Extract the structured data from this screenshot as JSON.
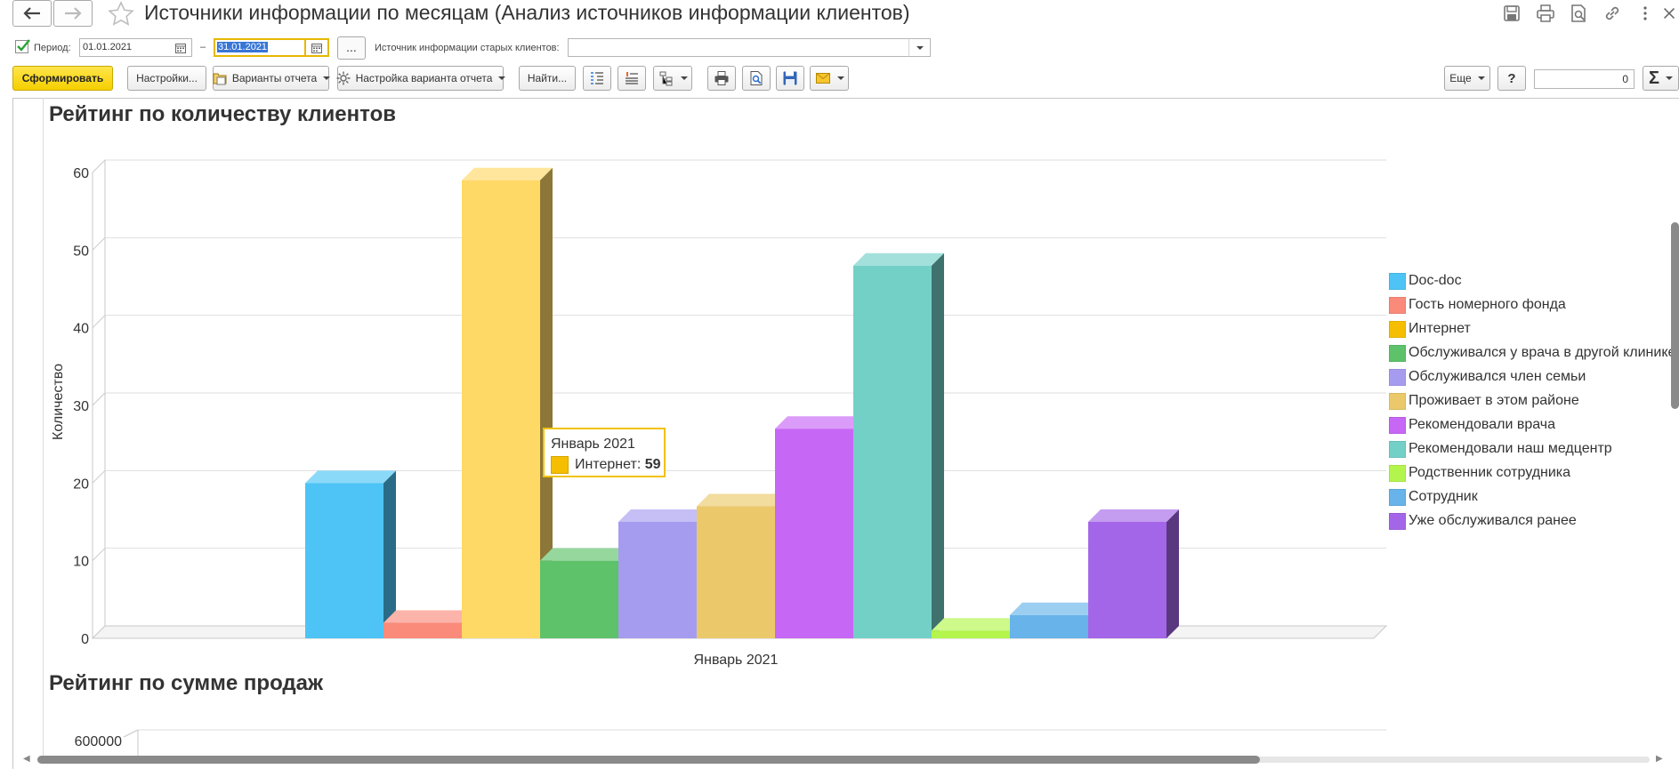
{
  "window": {
    "title": "Источники информации по месяцам (Анализ источников информации клиентов)",
    "back_icon": "arrow-left-icon",
    "forward_icon": "arrow-right-icon",
    "favorite_icon": "star-icon",
    "header_icons": [
      "save-icon",
      "print-icon",
      "preview-icon",
      "link-icon",
      "more-vertical-icon"
    ]
  },
  "filters": {
    "period_checked": true,
    "period_label": "Период:",
    "date_from": "01.01.2021",
    "separator": "–",
    "date_to": "31.01.2021",
    "choose_period_label": "...",
    "old_clients_source_label": "Источник информации старых клиентов:",
    "old_clients_source_value": ""
  },
  "toolbar": {
    "generate_label": "Сформировать",
    "settings_label": "Настройки...",
    "report_variants_label": "Варианты отчета",
    "variant_settings_label": "Настройка варианта отчета",
    "find_label": "Найти...",
    "more_label": "Еще",
    "help_label": "?",
    "sum_value": "0",
    "sum_icon": "sigma-icon"
  },
  "report": {
    "section1_title": "Рейтинг по количеству клиентов",
    "section2_title": "Рейтинг по сумме продаж",
    "section2_first_tick": "600000"
  },
  "tooltip": {
    "title": "Январь 2021",
    "series_label": "Интернет:",
    "value": "59",
    "swatch_color": "#f5be00"
  },
  "chart_data": {
    "type": "bar",
    "title": "Рейтинг по количеству клиентов",
    "categories": [
      "Январь 2021"
    ],
    "xlabel": "",
    "ylabel": "Количество",
    "ylim": [
      0,
      60
    ],
    "yticks": [
      0,
      10,
      20,
      30,
      40,
      50,
      60
    ],
    "grid": true,
    "legend_position": "right",
    "three_d": true,
    "series": [
      {
        "name": "Doc-doc",
        "values": [
          20
        ],
        "color": "#4dc4f5"
      },
      {
        "name": "Гость номерного фонда",
        "values": [
          2
        ],
        "color": "#fa8a7a"
      },
      {
        "name": "Интернет",
        "values": [
          59
        ],
        "color": "#ffd966"
      },
      {
        "name": "Обслуживался  у врача в другой клинике",
        "values": [
          10
        ],
        "color": "#5dc26a"
      },
      {
        "name": "Обслуживался член семьи",
        "values": [
          15
        ],
        "color": "#a59cf0"
      },
      {
        "name": "Проживает в этом районе",
        "values": [
          17
        ],
        "color": "#ebc96a"
      },
      {
        "name": "Рекомендовали врача",
        "values": [
          27
        ],
        "color": "#c767f5"
      },
      {
        "name": "Рекомендовали наш медцентр",
        "values": [
          48
        ],
        "color": "#72d0c7"
      },
      {
        "name": "Родственник сотрудника",
        "values": [
          1
        ],
        "color": "#b4f54d"
      },
      {
        "name": "Сотрудник",
        "values": [
          3
        ],
        "color": "#67b3ea"
      },
      {
        "name": "Уже обслуживался ранее",
        "values": [
          15
        ],
        "color": "#a466e8"
      }
    ],
    "legend_colors": [
      "#4dc4f5",
      "#fa8a7a",
      "#f5be00",
      "#5dc26a",
      "#a59cf0",
      "#ebc96a",
      "#c767f5",
      "#72d0c7",
      "#b4f54d",
      "#67b3ea",
      "#a466e8"
    ]
  }
}
